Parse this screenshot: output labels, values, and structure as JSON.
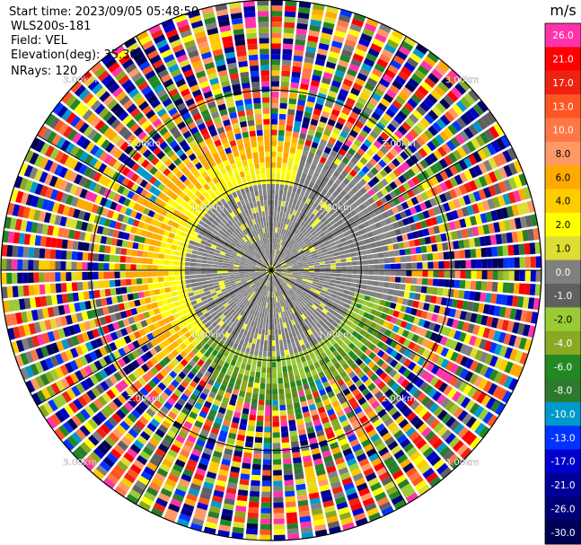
{
  "header": {
    "start_time": "Start time: 2023/09/05 05:48:50",
    "instrument": "WLS200s-181",
    "field": "Field: VEL",
    "elevation": "Elevation(deg): 35.30",
    "nrays": "NRays: 120"
  },
  "chart_data": {
    "type": "heatmap",
    "projection": "ppi-polar",
    "n_rays": 120,
    "max_range_km": 3.0,
    "range_ring_labels_km": [
      "1.00km",
      "2.00km",
      "3.00km"
    ],
    "colorbar": {
      "unit": "m/s",
      "tick_labels": [
        "26.0",
        "21.0",
        "17.0",
        "13.0",
        "10.0",
        "8.0",
        "6.0",
        "4.0",
        "2.0",
        "1.0",
        "0.0",
        "-1.0",
        "-2.0",
        "-4.0",
        "-6.0",
        "-8.0",
        "-10.0",
        "-13.0",
        "-17.0",
        "-21.0",
        "-26.0",
        "-30.0"
      ],
      "colors": [
        "#ff33aa",
        "#ff0000",
        "#ee2211",
        "#ff5522",
        "#ff7744",
        "#ff9966",
        "#ffaa00",
        "#ffcc00",
        "#ffff00",
        "#dddd33",
        "#808080",
        "#606060",
        "#99cc33",
        "#88aa22",
        "#228822",
        "#2d7a2d",
        "#0099cc",
        "#0033ff",
        "#0000cc",
        "#000099",
        "#000077",
        "#000055"
      ]
    },
    "pattern": {
      "near_field_gray_radius_km": 0.95,
      "yellow_orange_sector": "west-northwest",
      "olive_green_sector": "southeast",
      "far_field": "noise"
    }
  }
}
